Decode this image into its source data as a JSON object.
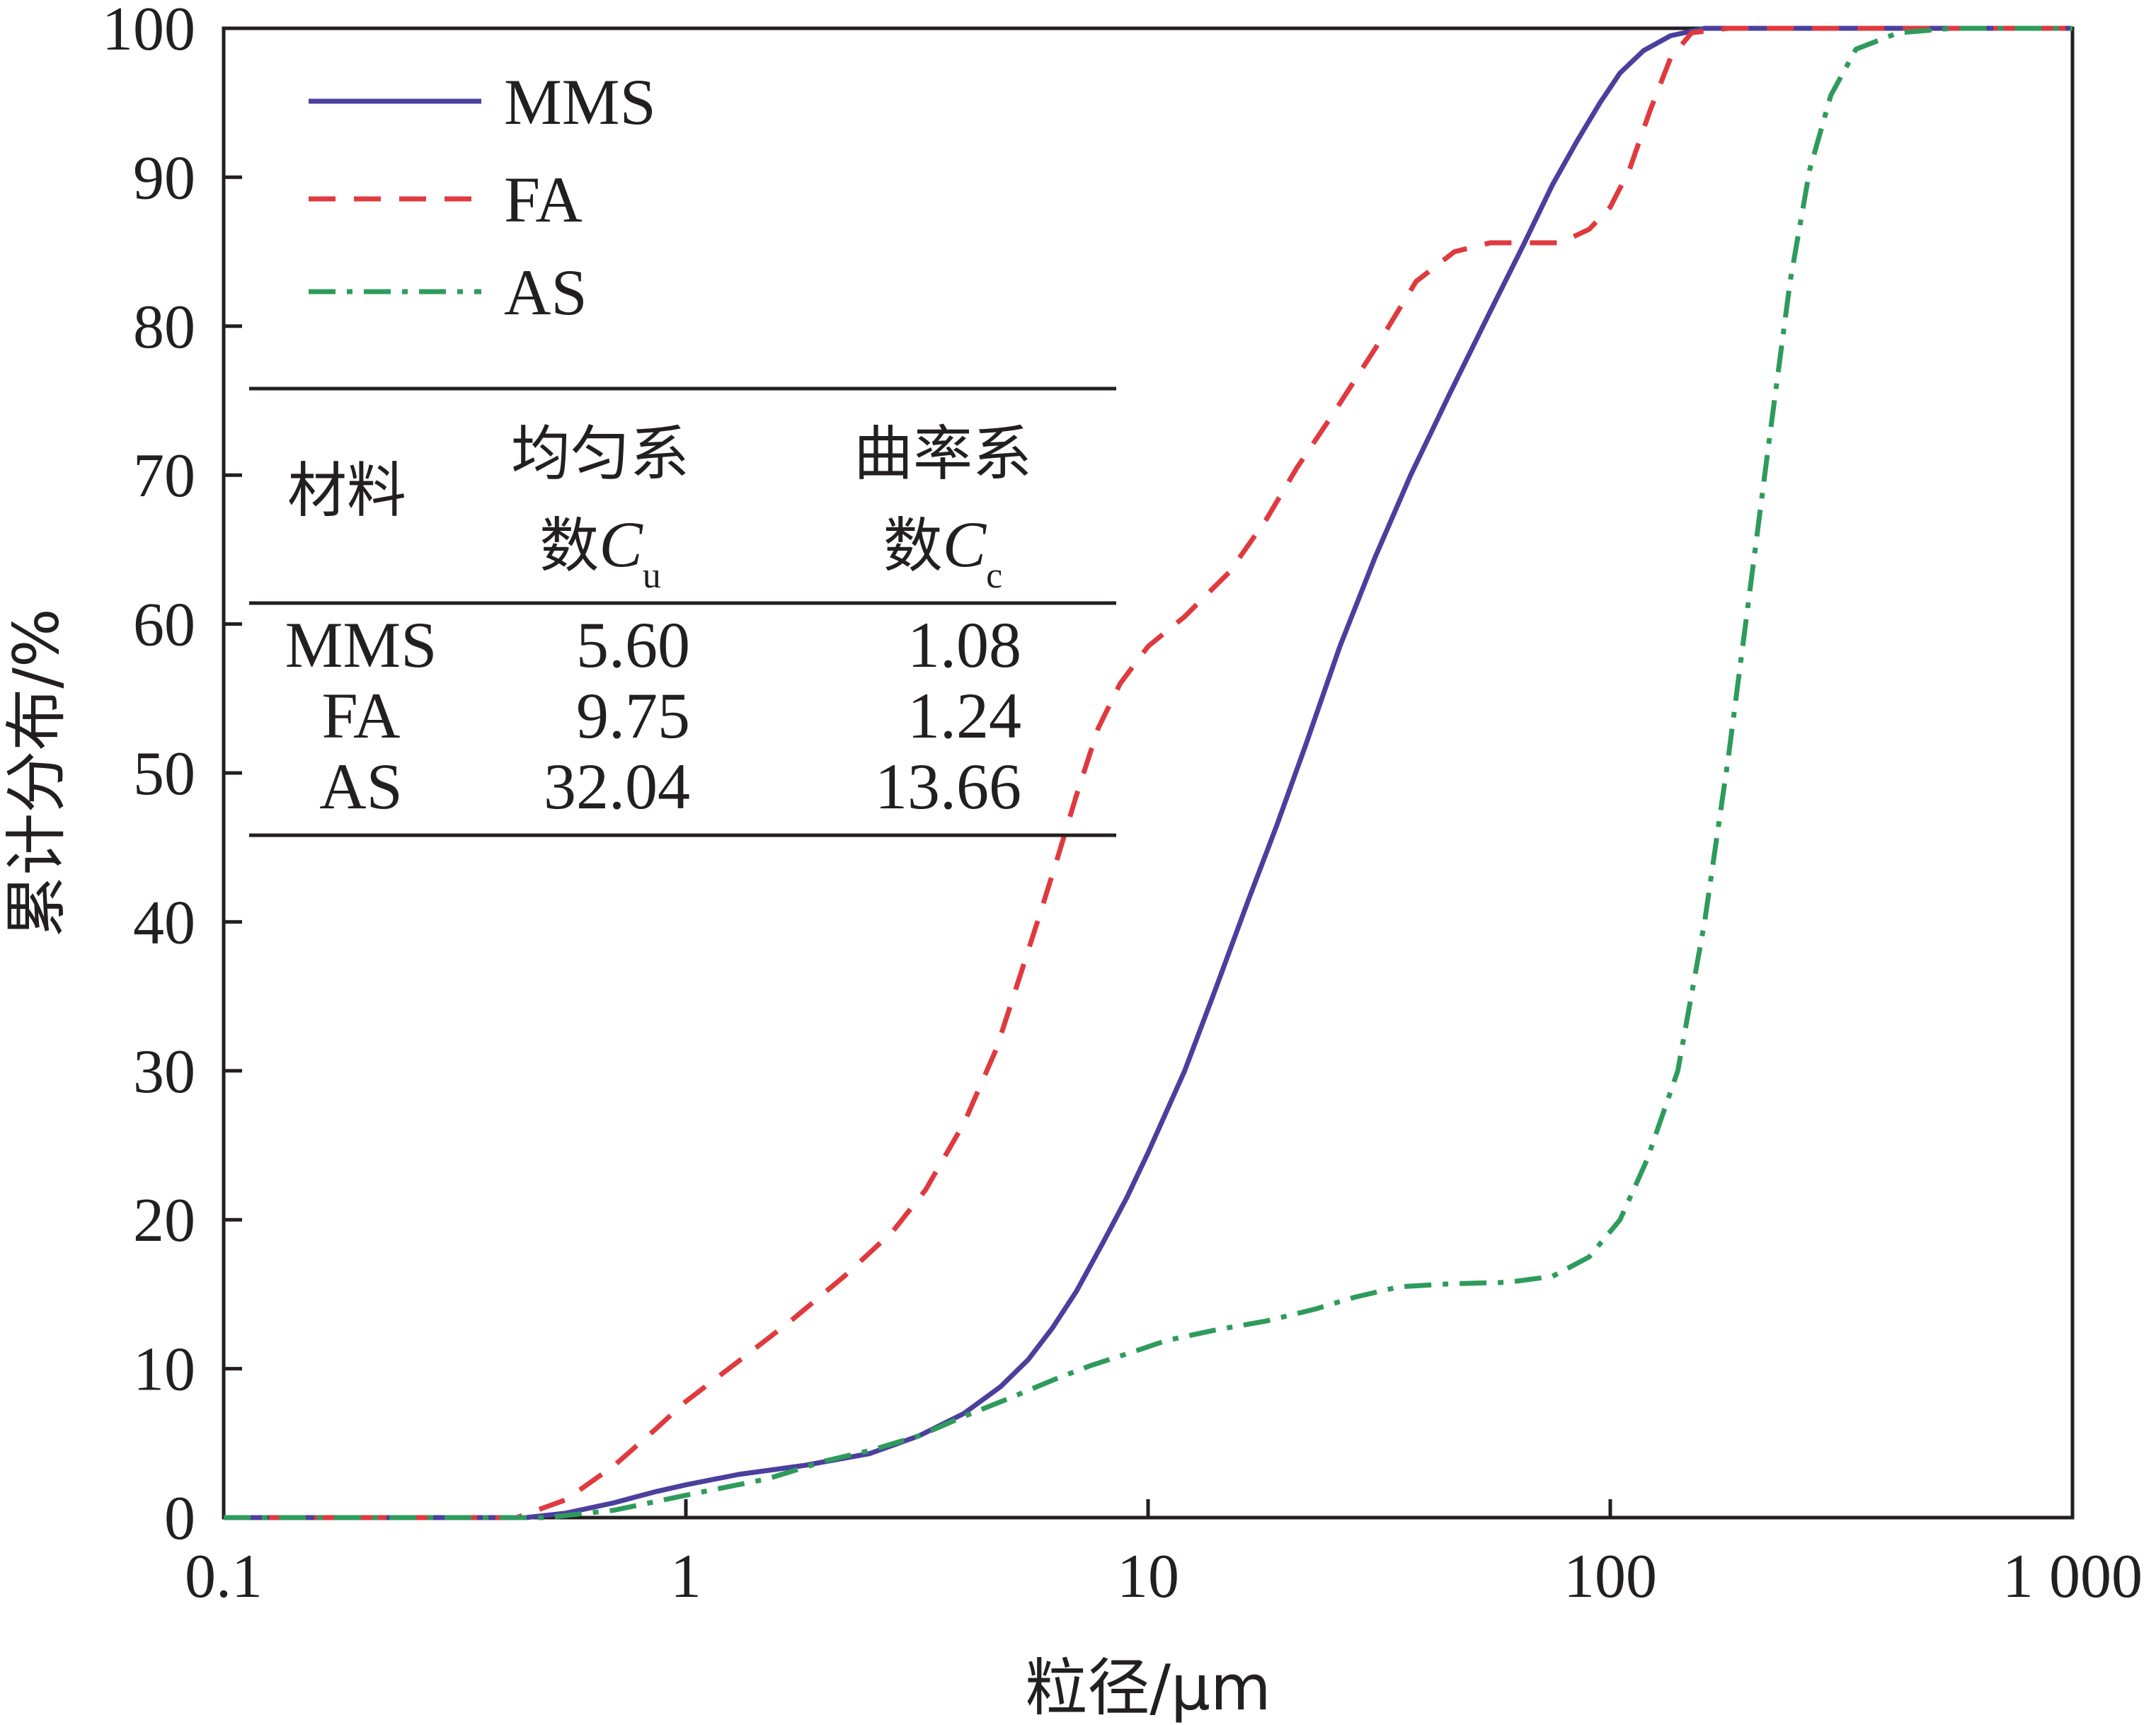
{
  "chart_data": {
    "type": "line",
    "xscale": "log",
    "xlim": [
      0.1,
      1000
    ],
    "ylim": [
      0,
      100
    ],
    "grid": false,
    "legend_position": "top-left",
    "xlabel": "粒径/μm",
    "ylabel": "累计分布/%",
    "x_ticks": [
      {
        "value": 0.1,
        "label": "0.1"
      },
      {
        "value": 1,
        "label": "1"
      },
      {
        "value": 10,
        "label": "10"
      },
      {
        "value": 100,
        "label": "100"
      },
      {
        "value": 1000,
        "label": "1 000"
      }
    ],
    "y_ticks": [
      {
        "value": 0,
        "label": "0"
      },
      {
        "value": 10,
        "label": "10"
      },
      {
        "value": 20,
        "label": "20"
      },
      {
        "value": 30,
        "label": "30"
      },
      {
        "value": 40,
        "label": "40"
      },
      {
        "value": 50,
        "label": "50"
      },
      {
        "value": 60,
        "label": "60"
      },
      {
        "value": 70,
        "label": "70"
      },
      {
        "value": 80,
        "label": "80"
      },
      {
        "value": 90,
        "label": "90"
      },
      {
        "value": 100,
        "label": "100"
      }
    ],
    "series": [
      {
        "name": "MMS",
        "color": "#4b3f9e",
        "style": "solid",
        "points": [
          [
            0.1,
            0
          ],
          [
            0.3,
            0
          ],
          [
            0.45,
            0
          ],
          [
            0.55,
            0.3
          ],
          [
            0.7,
            1.0
          ],
          [
            0.85,
            1.7
          ],
          [
            1.0,
            2.2
          ],
          [
            1.3,
            2.9
          ],
          [
            1.8,
            3.5
          ],
          [
            2.5,
            4.3
          ],
          [
            3.2,
            5.5
          ],
          [
            4.0,
            7.0
          ],
          [
            4.8,
            8.8
          ],
          [
            5.5,
            10.6
          ],
          [
            6.2,
            12.7
          ],
          [
            7.0,
            15.2
          ],
          [
            8.0,
            18.5
          ],
          [
            9.0,
            21.5
          ],
          [
            10.0,
            24.5
          ],
          [
            12.0,
            30.0
          ],
          [
            14.0,
            35.5
          ],
          [
            16.5,
            41.5
          ],
          [
            19.0,
            46.5
          ],
          [
            22.0,
            52.0
          ],
          [
            26.0,
            58.5
          ],
          [
            31.0,
            64.5
          ],
          [
            37.0,
            70.0
          ],
          [
            45.0,
            75.5
          ],
          [
            55.0,
            81.0
          ],
          [
            65.0,
            85.5
          ],
          [
            75.0,
            89.5
          ],
          [
            85.0,
            92.5
          ],
          [
            95.0,
            95.0
          ],
          [
            105.0,
            97.0
          ],
          [
            118.0,
            98.5
          ],
          [
            135.0,
            99.5
          ],
          [
            160.0,
            100
          ],
          [
            300.0,
            100
          ],
          [
            1000.0,
            100
          ]
        ]
      },
      {
        "name": "FA",
        "color": "#e0393e",
        "style": "dashed",
        "points": [
          [
            0.1,
            0
          ],
          [
            0.3,
            0
          ],
          [
            0.43,
            0
          ],
          [
            0.55,
            1.2
          ],
          [
            0.7,
            3.5
          ],
          [
            0.85,
            5.8
          ],
          [
            1.0,
            7.8
          ],
          [
            1.3,
            10.5
          ],
          [
            1.7,
            13.3
          ],
          [
            2.2,
            16.2
          ],
          [
            2.8,
            19.2
          ],
          [
            3.3,
            22.0
          ],
          [
            4.0,
            26.5
          ],
          [
            4.7,
            31.5
          ],
          [
            5.3,
            36.5
          ],
          [
            5.9,
            41.0
          ],
          [
            6.4,
            44.5
          ],
          [
            7.0,
            48.5
          ],
          [
            7.8,
            53.0
          ],
          [
            8.7,
            56.0
          ],
          [
            10.0,
            58.5
          ],
          [
            12.0,
            60.5
          ],
          [
            15.0,
            63.5
          ],
          [
            18.0,
            67.0
          ],
          [
            21.0,
            70.5
          ],
          [
            25.0,
            74.0
          ],
          [
            31.0,
            78.5
          ],
          [
            38.0,
            83.0
          ],
          [
            46.0,
            85.0
          ],
          [
            55.0,
            85.6
          ],
          [
            65.0,
            85.6
          ],
          [
            78.0,
            85.6
          ],
          [
            90.0,
            86.5
          ],
          [
            100.0,
            88.0
          ],
          [
            110.0,
            90.5
          ],
          [
            122.0,
            94.5
          ],
          [
            135.0,
            98.0
          ],
          [
            150.0,
            99.7
          ],
          [
            180.0,
            100
          ],
          [
            1000.0,
            100
          ]
        ]
      },
      {
        "name": "AS",
        "color": "#2e9b5c",
        "style": "dashdot",
        "points": [
          [
            0.1,
            0
          ],
          [
            0.3,
            0
          ],
          [
            0.5,
            0
          ],
          [
            0.7,
            0.5
          ],
          [
            1.0,
            1.5
          ],
          [
            1.5,
            2.6
          ],
          [
            2.0,
            3.8
          ],
          [
            2.5,
            4.5
          ],
          [
            3.2,
            5.5
          ],
          [
            4.0,
            6.8
          ],
          [
            5.0,
            8.0
          ],
          [
            6.3,
            9.3
          ],
          [
            7.5,
            10.2
          ],
          [
            9.0,
            11.0
          ],
          [
            11.0,
            11.9
          ],
          [
            14.0,
            12.6
          ],
          [
            18.0,
            13.2
          ],
          [
            23.0,
            14.0
          ],
          [
            28.0,
            14.8
          ],
          [
            35.0,
            15.5
          ],
          [
            45.0,
            15.7
          ],
          [
            60.0,
            15.8
          ],
          [
            75.0,
            16.2
          ],
          [
            90.0,
            17.5
          ],
          [
            105.0,
            20.0
          ],
          [
            120.0,
            24.0
          ],
          [
            140.0,
            30.0
          ],
          [
            160.0,
            40.0
          ],
          [
            180.0,
            51.0
          ],
          [
            200.0,
            62.0
          ],
          [
            220.0,
            72.0
          ],
          [
            245.0,
            83.0
          ],
          [
            270.0,
            90.5
          ],
          [
            300.0,
            95.5
          ],
          [
            340.0,
            98.6
          ],
          [
            420.0,
            99.7
          ],
          [
            550.0,
            100
          ],
          [
            1000.0,
            100
          ]
        ]
      }
    ],
    "inset_table": {
      "headers": {
        "material": "材料",
        "cu_line1": "均匀系",
        "cu_line2": "数",
        "cu_symbol": "C",
        "cu_sub": "u",
        "cc_line1": "曲率系",
        "cc_line2": "数",
        "cc_symbol": "C",
        "cc_sub": "c"
      },
      "rows": [
        {
          "material": "MMS",
          "cu": "5.60",
          "cc": "1.08"
        },
        {
          "material": "FA",
          "cu": "9.75",
          "cc": "1.24"
        },
        {
          "material": "AS",
          "cu": "32.04",
          "cc": "13.66"
        }
      ]
    }
  }
}
